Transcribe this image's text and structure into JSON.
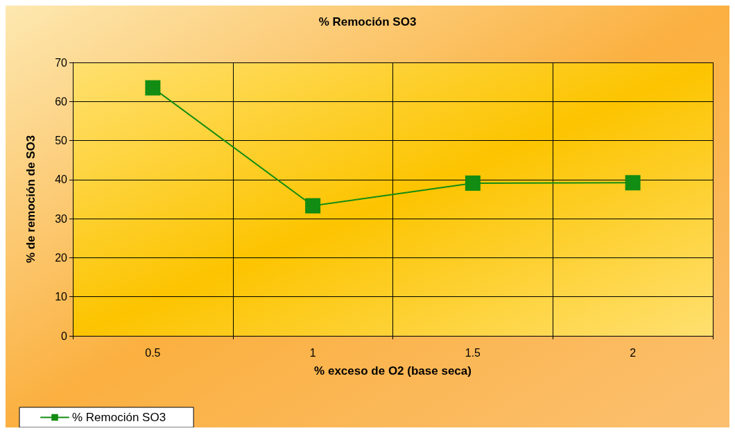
{
  "chart_data": {
    "type": "line",
    "title": "% Remoción SO3",
    "xlabel": "% exceso de O2 (base seca)",
    "ylabel": "% de remoción de SO3",
    "categories": [
      "0.5",
      "1",
      "1.5",
      "2"
    ],
    "series": [
      {
        "name": "% Remoción SO3",
        "color": "#128c12",
        "values": [
          63.5,
          33.3,
          39.1,
          39.2
        ]
      }
    ],
    "ylim": [
      0,
      70
    ],
    "yticks": [
      0,
      10,
      20,
      30,
      40,
      50,
      60,
      70
    ],
    "grid": true,
    "legend": "bottom left",
    "marker": "square",
    "line_style": "solid"
  }
}
